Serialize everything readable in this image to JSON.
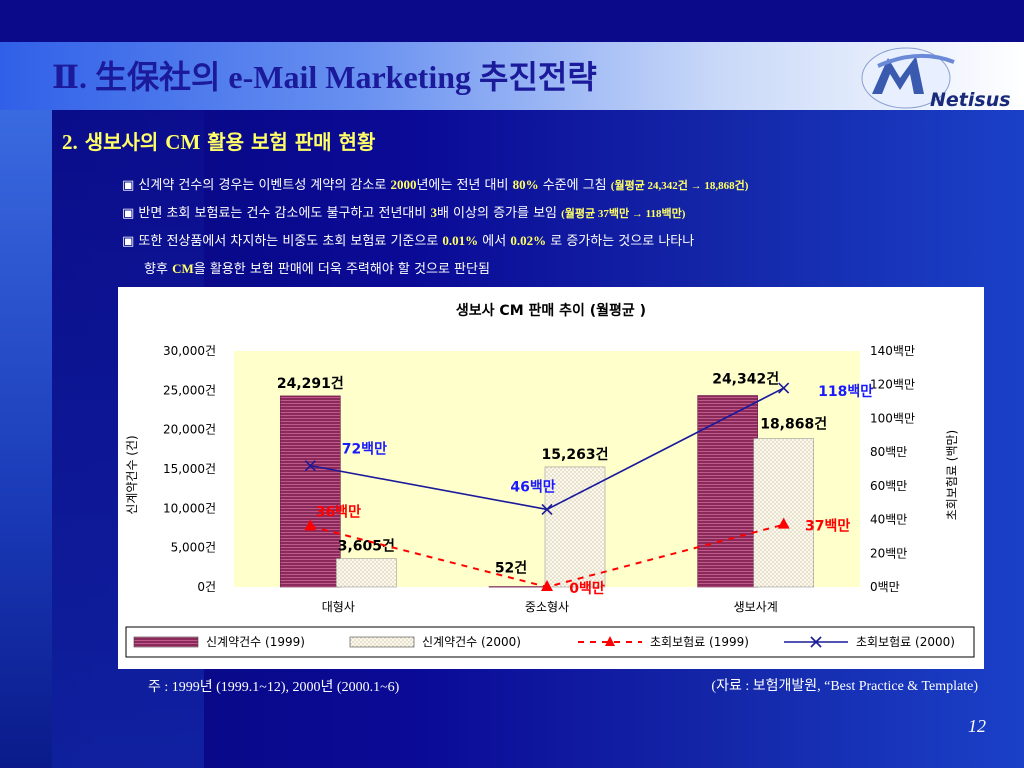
{
  "slide": {
    "title": "Ⅱ. 生保社의 e-Mail Marketing 추진전략",
    "logo_text": "Netisus",
    "subtitle_num": "2.",
    "subtitle_pre": "생보사의 ",
    "subtitle_en": "CM",
    "subtitle_post": " 활용 보험 판매 현황",
    "bullets": [
      {
        "pre": "▣ 신계약 건수의 경우는 이벤트성 계약의 감소로 ",
        "b1": "2000",
        "mid": "년에는 전년 대비 ",
        "b2": "80%",
        "post": " 수준에 그침 ",
        "small": "(월평균  24,342건 → 18,868건)"
      },
      {
        "pre": "▣ 반면 초회 보험료는 건수 감소에도 불구하고 전년대비 ",
        "b1": "3",
        "mid": "배 이상의 증가를 보임 ",
        "b2": "",
        "post": "",
        "small": "(월평균 37백만 → 118백만)"
      },
      {
        "pre": "▣ 또한 전상품에서 차지하는 비중도 초회 보험료 기준으로 ",
        "b1": "0.01%",
        "mid": " 에서 ",
        "b2": "0.02%",
        "post": " 로 증가하는 것으로 나타나",
        "small": ""
      },
      {
        "pre": "향후 ",
        "b1": "CM",
        "mid": "을 활용한 보험 판매에 더욱 주력해야 할 것으로 판단됨",
        "b2": "",
        "post": "",
        "small": ""
      }
    ],
    "note": "주 : 1999년 (1999.1~12),   2000년 (2000.1~6)",
    "source": "(자료 : 보험개발원, “Best Practice & Template)",
    "page_number": "12"
  },
  "chart_data": {
    "type": "bar",
    "title": "생보사  CM 판매  추이  (월평균 )",
    "categories": [
      "대형사",
      "중소형사",
      "생보사계"
    ],
    "ylabel_left": "신계약건수 (건)",
    "ylabel_right": "초회보험료 (백만)",
    "ylim_left": [
      0,
      30000
    ],
    "ylim_right": [
      0,
      140
    ],
    "left_ticks": [
      "0건",
      "5,000건",
      "10,000건",
      "15,000건",
      "20,000건",
      "25,000건",
      "30,000건"
    ],
    "right_ticks": [
      "0백만",
      "20백만",
      "40백만",
      "60백만",
      "80백만",
      "100백만",
      "120백만",
      "140백만"
    ],
    "grid": false,
    "legend_position": "bottom",
    "colors": {
      "bar1999": "#8a2a5a",
      "bar2000": "#f4f0e0",
      "line1999": "#ff0000",
      "line2000": "#1a1a9a",
      "plot_bg": "#ffffcc"
    },
    "series": [
      {
        "name": "신계약건수  (1999)",
        "kind": "bar",
        "axis": "left",
        "values": [
          24291,
          52,
          24342
        ],
        "labels": [
          "24,291건",
          "52건",
          "24,342건"
        ]
      },
      {
        "name": "신계약건수  (2000)",
        "kind": "bar",
        "axis": "left",
        "values": [
          3605,
          15263,
          18868
        ],
        "labels": [
          "3,605건",
          "15,263건",
          "18,868건"
        ]
      },
      {
        "name": "초회보험료  (1999)",
        "kind": "line",
        "axis": "right",
        "values": [
          36,
          0,
          37
        ],
        "labels": [
          "36백만",
          "0백만",
          "37백만"
        ]
      },
      {
        "name": "초회보험료  (2000)",
        "kind": "line",
        "axis": "right",
        "values": [
          72,
          46,
          118
        ],
        "labels": [
          "72백만",
          "46백만",
          "118백만"
        ]
      }
    ]
  }
}
